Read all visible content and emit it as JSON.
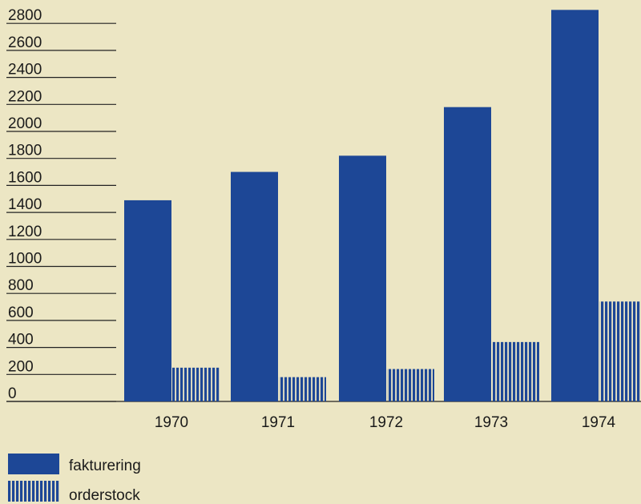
{
  "chart_data": {
    "type": "bar",
    "title": "",
    "xlabel": "",
    "ylabel": "",
    "ylim": [
      0,
      2900
    ],
    "yticks": [
      0,
      200,
      400,
      600,
      800,
      1000,
      1200,
      1400,
      1600,
      1800,
      2000,
      2200,
      2400,
      2600,
      2800
    ],
    "categories": [
      "1970",
      "1971",
      "1972",
      "1973",
      "1974"
    ],
    "series": [
      {
        "name": "fakturering",
        "values": [
          1490,
          1700,
          1820,
          2180,
          2900
        ]
      },
      {
        "name": "orderstock",
        "values": [
          250,
          180,
          240,
          440,
          740
        ]
      }
    ],
    "grid": false,
    "legend_position": "bottom-left",
    "colors": {
      "bar": "#1d4796",
      "background": "#ece6c4",
      "text": "#1a1a1a"
    }
  }
}
